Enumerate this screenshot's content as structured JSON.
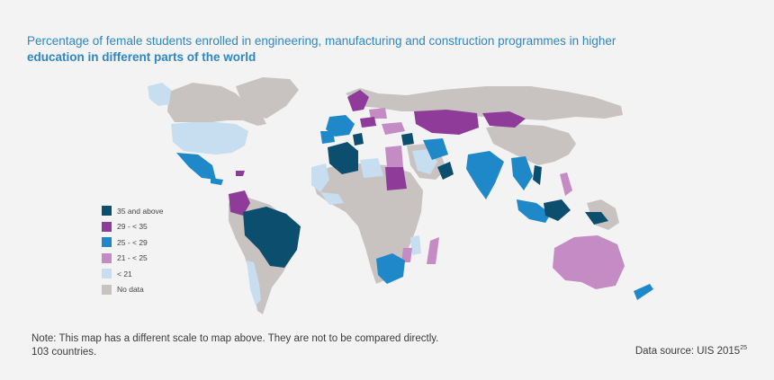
{
  "title": {
    "line1": "Percentage of female students enrolled in engineering, manufacturing and construction programmes in higher",
    "line2": "education in different parts of the world"
  },
  "colors": {
    "title": "#2f86c2",
    "background": "#f3f3f4",
    "no_data": "#c8c3c0",
    "lt21": "#c7ddf0",
    "c21_25": "#c58bc4",
    "c25_29": "#1f88c9",
    "c29_35": "#8e3b99",
    "c35_above": "#0b4e6e"
  },
  "legend": [
    {
      "label": "35 and above",
      "color": "#0b4e6e"
    },
    {
      "label": "29 - < 35",
      "color": "#8e3b99"
    },
    {
      "label": "25 - < 29",
      "color": "#1f88c9"
    },
    {
      "label": "21 - < 25",
      "color": "#c58bc4"
    },
    {
      "label": "< 21",
      "color": "#c7ddf0"
    },
    {
      "label": "No data",
      "color": "#c8c3c0"
    }
  ],
  "note": {
    "line1": "Note: This map has a different scale to map above. They are not to be compared directly.",
    "line2": "103  countries."
  },
  "source": {
    "text": "Data source: UIS 2015",
    "footnote": "25"
  }
}
